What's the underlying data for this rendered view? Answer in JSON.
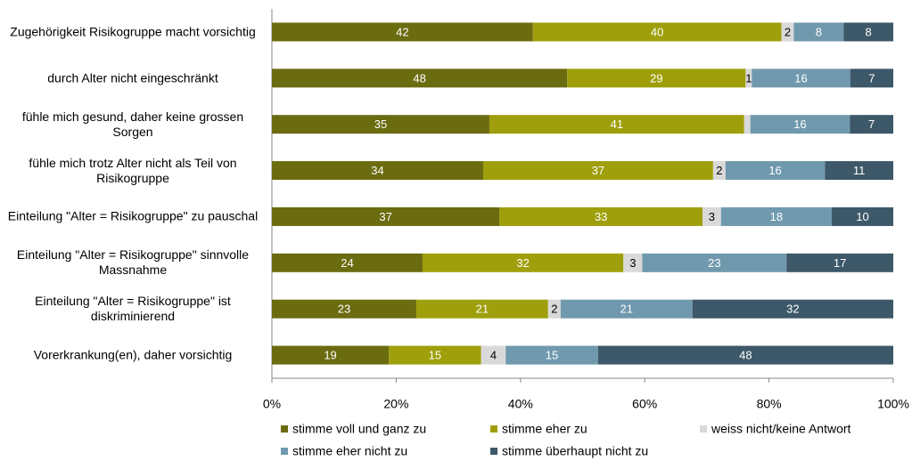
{
  "chart_data": {
    "type": "bar",
    "orientation": "horizontal",
    "stacking": "percent",
    "categories": [
      "Zugehörigkeit Risikogruppe macht vorsichtig",
      "durch Alter nicht eingeschränkt",
      "fühle mich gesund, daher keine grossen Sorgen",
      "fühle mich trotz Alter nicht als Teil von Risikogruppe",
      "Einteilung \"Alter = Risikogruppe\" zu pauschal",
      "Einteilung \"Alter = Risikogruppe\" sinnvolle Massnahme",
      "Einteilung \"Alter = Risikogruppe\" ist diskriminierend",
      "Vorerkrankung(en), daher vorsichtig"
    ],
    "series": [
      {
        "name": "stimme voll und ganz zu",
        "color": "#6b6b10",
        "label_color": "#ffffff",
        "values": [
          42,
          48,
          35,
          34,
          37,
          24,
          23,
          19
        ]
      },
      {
        "name": "stimme eher zu",
        "color": "#9f9f0c",
        "label_color": "#ffffff",
        "values": [
          40,
          29,
          41,
          37,
          33,
          32,
          21,
          15
        ]
      },
      {
        "name": "weiss nicht/keine Antwort",
        "color": "#d9d9d9",
        "label_color": "#000000",
        "values": [
          2,
          1,
          1,
          2,
          3,
          3,
          2,
          4
        ],
        "value_labels": [
          "2",
          "1",
          null,
          "2",
          "3",
          "3",
          "2",
          "4"
        ]
      },
      {
        "name": "stimme eher nicht zu",
        "color": "#7099ae",
        "label_color": "#ffffff",
        "values": [
          8,
          16,
          16,
          16,
          18,
          23,
          21,
          15
        ]
      },
      {
        "name": "stimme überhaupt nicht zu",
        "color": "#3d5868",
        "label_color": "#ffffff",
        "values": [
          8,
          7,
          7,
          11,
          10,
          17,
          32,
          48
        ]
      }
    ],
    "xlim": [
      0,
      100
    ],
    "xticks": [
      {
        "value": 0,
        "label": "0%"
      },
      {
        "value": 20,
        "label": "20%"
      },
      {
        "value": 40,
        "label": "40%"
      },
      {
        "value": 60,
        "label": "60%"
      },
      {
        "value": 80,
        "label": "80%"
      },
      {
        "value": 100,
        "label": "100%"
      }
    ]
  }
}
